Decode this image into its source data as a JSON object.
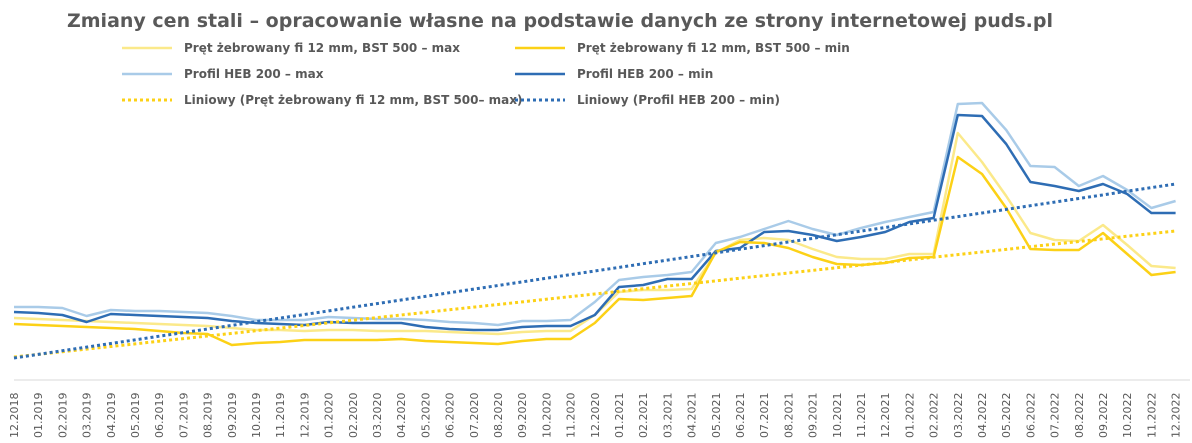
{
  "chart_data": {
    "type": "line",
    "title": "Zmiany cen stali – opracowanie własne na podstawie danych ze strony internetowej puds.pl",
    "categories": [
      "12.2018",
      "01.2019",
      "02.2019",
      "03.2019",
      "04.2019",
      "05.2019",
      "06.2019",
      "07.2019",
      "08.2019",
      "09.2019",
      "10.2019",
      "11.2019",
      "12.2019",
      "01.2020",
      "02.2020",
      "03.2020",
      "04.2020",
      "05.2020",
      "06.2020",
      "07.2020",
      "08.2020",
      "09.2020",
      "10.2020",
      "11.2020",
      "12.2020",
      "01.2021",
      "02.2021",
      "03.2021",
      "04.2021",
      "05.2021",
      "06.2021",
      "07.2021",
      "08.2021",
      "09.2021",
      "10.2021",
      "11.2021",
      "12.2021",
      "01.2022",
      "02.2022",
      "03.2022",
      "04.2022",
      "05.2022",
      "06.2022",
      "07.2022",
      "08.2022",
      "09.2022",
      "10.2022",
      "11.2022",
      "12.2022"
    ],
    "ylim": [
      0,
      290
    ],
    "series": [
      {
        "name": "Pręt żebrowany fi 12 mm, BST 500 – max",
        "color": "#fbe98a",
        "dotted": false,
        "values": [
          62,
          61,
          60,
          59,
          58,
          57,
          56,
          55,
          54,
          52,
          50,
          50,
          49,
          50,
          50,
          49,
          49,
          49,
          48,
          47,
          46,
          48,
          49,
          49,
          65,
          88,
          90,
          90,
          91,
          127,
          140,
          142,
          140,
          131,
          123,
          121,
          121,
          126,
          126,
          247,
          218,
          184,
          147,
          140,
          139,
          155,
          135,
          114,
          112
        ]
      },
      {
        "name": "Pręt żebrowany fi 12 mm, BST 500 – min",
        "color": "#fcd116",
        "dotted": false,
        "values": [
          56,
          55,
          54,
          53,
          52,
          51,
          49,
          47,
          46,
          35,
          37,
          38,
          40,
          40,
          40,
          40,
          41,
          39,
          38,
          37,
          36,
          39,
          41,
          41,
          57,
          81,
          80,
          82,
          84,
          128,
          138,
          137,
          132,
          123,
          116,
          115,
          117,
          122,
          123,
          223,
          206,
          172,
          131,
          130,
          130,
          147,
          126,
          105,
          108
        ]
      },
      {
        "name": "Profil HEB 200 – max",
        "color": "#a9cbe8",
        "dotted": false,
        "values": [
          73,
          73,
          72,
          64,
          70,
          69,
          69,
          68,
          67,
          64,
          60,
          60,
          60,
          63,
          62,
          61,
          61,
          60,
          58,
          57,
          55,
          59,
          59,
          60,
          78,
          100,
          103,
          105,
          108,
          137,
          143,
          151,
          159,
          151,
          145,
          152,
          158,
          163,
          168,
          276,
          277,
          250,
          214,
          213,
          194,
          204,
          190,
          172,
          179
        ]
      },
      {
        "name": "Profil HEB 200 – min",
        "color": "#2e6db4",
        "dotted": false,
        "values": [
          68,
          67,
          65,
          58,
          66,
          65,
          64,
          63,
          62,
          59,
          57,
          56,
          55,
          58,
          57,
          57,
          57,
          53,
          51,
          50,
          50,
          53,
          54,
          54,
          65,
          93,
          95,
          101,
          101,
          129,
          132,
          148,
          149,
          145,
          139,
          143,
          148,
          158,
          162,
          265,
          264,
          236,
          198,
          194,
          189,
          196,
          186,
          167,
          167
        ]
      },
      {
        "name": "Liniowy (Pręt żebrowany fi 12 mm, BST 500– max)",
        "color": "#fcd116",
        "dotted": true,
        "values": [
          23,
          25.6,
          28.3,
          30.9,
          33.5,
          36.1,
          38.8,
          41.4,
          44,
          46.6,
          49.3,
          51.9,
          54.5,
          57.1,
          59.8,
          62.4,
          65,
          67.6,
          70.3,
          72.9,
          75.5,
          78.1,
          80.8,
          83.4,
          86,
          88.6,
          91.3,
          93.9,
          96.5,
          99.1,
          101.8,
          104.4,
          107,
          109.6,
          112.3,
          114.9,
          117.5,
          120.1,
          122.8,
          125.4,
          128,
          130.6,
          133.3,
          135.9,
          138.5,
          141.1,
          143.8,
          146.4,
          149
        ]
      },
      {
        "name": "Liniowy (Profil HEB 200 – min)",
        "color": "#2e6db4",
        "dotted": true,
        "values": [
          22,
          25.6,
          29.3,
          32.9,
          36.5,
          40.1,
          43.8,
          47.4,
          51,
          54.6,
          58.3,
          61.9,
          65.5,
          69.1,
          72.8,
          76.4,
          80,
          83.6,
          87.3,
          90.9,
          94.5,
          98.1,
          101.8,
          105.4,
          109,
          112.6,
          116.3,
          119.9,
          123.5,
          127.1,
          130.8,
          134.4,
          138,
          141.6,
          145.3,
          148.9,
          152.5,
          156.1,
          159.8,
          163.4,
          167,
          170.6,
          174.3,
          177.9,
          181.5,
          185.1,
          188.8,
          192.4,
          196
        ]
      }
    ]
  }
}
